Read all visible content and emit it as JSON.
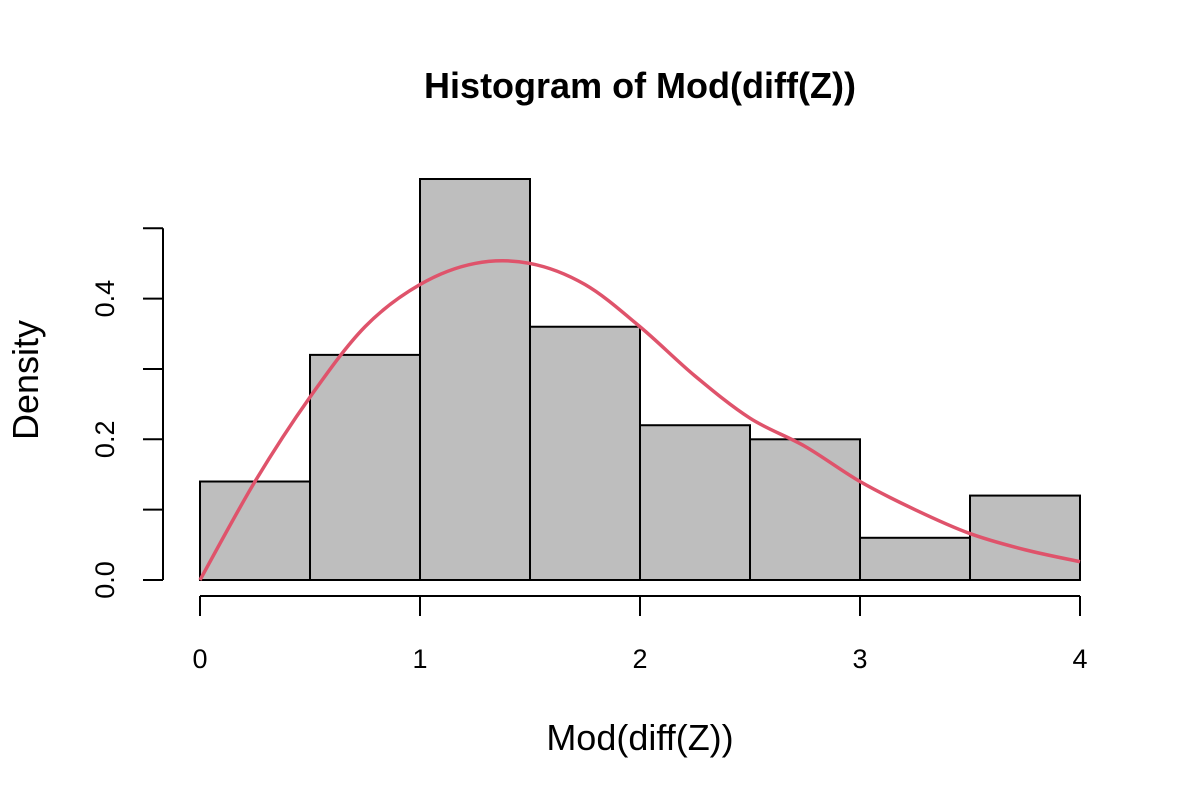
{
  "chart_data": {
    "type": "bar",
    "title": "Histogram of Mod(diff(Z))",
    "xlabel": "Mod(diff(Z))",
    "ylabel": "Density",
    "xlim": [
      0,
      4
    ],
    "ylim": [
      0,
      0.5
    ],
    "x_ticks": [
      "0",
      "1",
      "2",
      "3",
      "4"
    ],
    "y_ticks": [
      "0.0",
      "0.2",
      "0.4"
    ],
    "y_tick_values": [
      0,
      0.1,
      0.2,
      0.3,
      0.4,
      0.5
    ],
    "bins": [
      {
        "from": 0.0,
        "to": 0.5,
        "value": 0.14
      },
      {
        "from": 0.5,
        "to": 1.0,
        "value": 0.32
      },
      {
        "from": 1.0,
        "to": 1.5,
        "value": 0.57
      },
      {
        "from": 1.5,
        "to": 2.0,
        "value": 0.36
      },
      {
        "from": 2.0,
        "to": 2.5,
        "value": 0.22
      },
      {
        "from": 2.5,
        "to": 3.0,
        "value": 0.2
      },
      {
        "from": 3.0,
        "to": 3.5,
        "value": 0.06
      },
      {
        "from": 3.5,
        "to": 4.0,
        "value": 0.12
      }
    ],
    "density_curve": {
      "color": "#DF536B",
      "points": [
        [
          0.0,
          0.0
        ],
        [
          0.25,
          0.14
        ],
        [
          0.5,
          0.26
        ],
        [
          0.75,
          0.36
        ],
        [
          1.0,
          0.42
        ],
        [
          1.25,
          0.45
        ],
        [
          1.5,
          0.45
        ],
        [
          1.75,
          0.42
        ],
        [
          2.0,
          0.36
        ],
        [
          2.25,
          0.29
        ],
        [
          2.5,
          0.23
        ],
        [
          2.75,
          0.19
        ],
        [
          3.0,
          0.14
        ],
        [
          3.25,
          0.1
        ],
        [
          3.5,
          0.066
        ],
        [
          3.75,
          0.043
        ],
        [
          4.0,
          0.026
        ]
      ]
    },
    "bar_fill": "#BEBEBE",
    "bar_stroke": "#000000",
    "grid": false
  }
}
